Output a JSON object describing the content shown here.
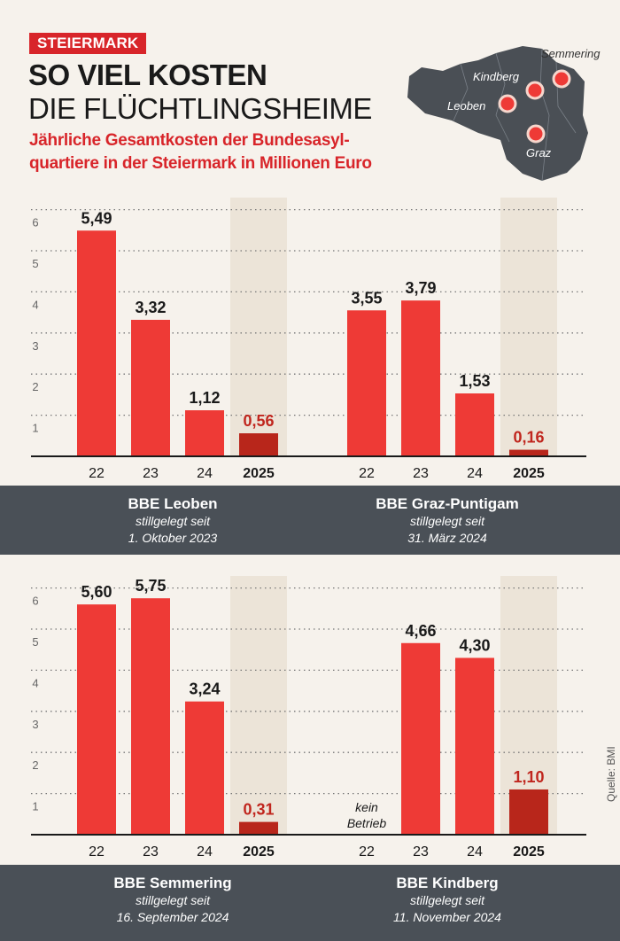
{
  "header": {
    "tag": "STEIERMARK",
    "title_line1": "SO VIEL KOSTEN",
    "title_line2": "DIE FLÜCHTLINGSHEIME",
    "subtitle_line1": "Jährliche Gesamtkosten der Bundesasyl-",
    "subtitle_line2": "quartiere in der Steiermark in Millionen Euro"
  },
  "map": {
    "labels": [
      "Semmering",
      "Kindberg",
      "Leoben",
      "Graz"
    ]
  },
  "colors": {
    "bar": "#ee3a36",
    "bar_2025": "#b8261b",
    "label_2025": "#c0261e",
    "highlight": "#ece4d8",
    "band": "#4a5057"
  },
  "source": "Quelle: BMI",
  "chart_data": [
    {
      "type": "bar",
      "title": "BBE Leoben",
      "note_line1": "stillgelegt seit",
      "note_line2": "1. Oktober 2023",
      "categories": [
        "22",
        "23",
        "24",
        "2025"
      ],
      "values": [
        5.49,
        3.32,
        1.12,
        0.56
      ],
      "value_labels": [
        "5,49",
        "3,32",
        "1,12",
        "0,56"
      ],
      "yticks": [
        "1",
        "2",
        "3",
        "4",
        "5",
        "6"
      ],
      "ylim": [
        0,
        6.3
      ]
    },
    {
      "type": "bar",
      "title": "BBE Graz-Puntigam",
      "note_line1": "stillgelegt seit",
      "note_line2": "31. März 2024",
      "categories": [
        "22",
        "23",
        "24",
        "2025"
      ],
      "values": [
        3.55,
        3.79,
        1.53,
        0.16
      ],
      "value_labels": [
        "3,55",
        "3,79",
        "1,53",
        "0,16"
      ],
      "yticks": [],
      "ylim": [
        0,
        6.3
      ]
    },
    {
      "type": "bar",
      "title": "BBE Semmering",
      "note_line1": "stillgelegt seit",
      "note_line2": "16. September 2024",
      "categories": [
        "22",
        "23",
        "24",
        "2025"
      ],
      "values": [
        5.6,
        5.75,
        3.24,
        0.31
      ],
      "value_labels": [
        "5,60",
        "5,75",
        "3,24",
        "0,31"
      ],
      "yticks": [
        "1",
        "2",
        "3",
        "4",
        "5",
        "6"
      ],
      "ylim": [
        0,
        6.3
      ]
    },
    {
      "type": "bar",
      "title": "BBE Kindberg",
      "note_line1": "stillgelegt seit",
      "note_line2": "11. November 2024",
      "categories": [
        "22",
        "23",
        "24",
        "2025"
      ],
      "values": [
        null,
        4.66,
        4.3,
        1.1
      ],
      "value_labels": [
        "",
        "4,66",
        "4,30",
        "1,10"
      ],
      "no_data_line1": "kein",
      "no_data_line2": "Betrieb",
      "yticks": [],
      "ylim": [
        0,
        6.3
      ]
    }
  ]
}
